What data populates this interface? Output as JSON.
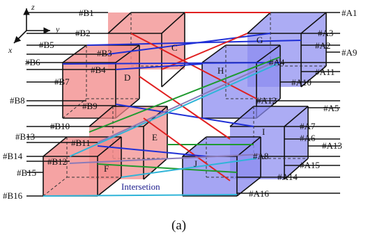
{
  "axes": {
    "z": "z",
    "y": "y",
    "x": "x"
  },
  "colors": {
    "red_face": "#f28c8c",
    "blue_face": "#8c8cf0",
    "wire_red": "#e02020",
    "wire_blue": "#1f2fd6",
    "wire_green": "#1f9a2f",
    "wire_cyan": "#2fb4d8",
    "wire_purple": "#8a7ab8"
  },
  "left_pins": [
    "#B1",
    "#B2",
    "#B5",
    "#B3",
    "#B6",
    "#B4",
    "#B7",
    "#B8",
    "#B9",
    "#B10",
    "#B13",
    "#B11",
    "#B14",
    "#B12",
    "#B15",
    "#B16"
  ],
  "right_pins": [
    "#A1",
    "#A3",
    "#A2",
    "#A9",
    "#A4",
    "#A11",
    "#A10",
    "#A12",
    "#A5",
    "#A7",
    "#A6",
    "#A13",
    "#A8",
    "#A15",
    "#A14",
    "#A16"
  ],
  "red_cubes": [
    "C",
    "D",
    "E",
    "F"
  ],
  "blue_cubes": [
    "G",
    "H",
    "I",
    "J"
  ],
  "annotation": "Intersetion",
  "caption": "(a)"
}
